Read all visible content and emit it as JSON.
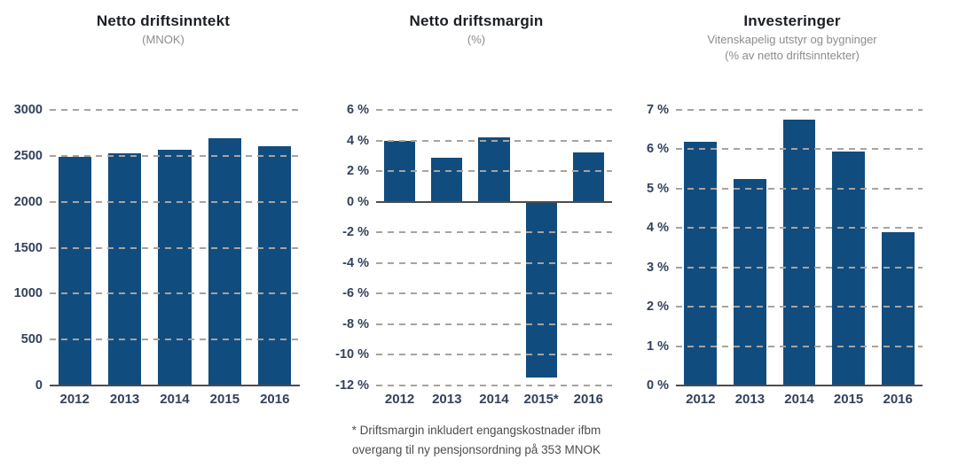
{
  "page": {
    "background": "#FFFFFF",
    "description_colors": {
      "bar": "#114C7E",
      "gridline": "#A8A39D",
      "axis_line": "#4D4D4D",
      "tick_label": "#33415C",
      "title": "#1B1E24",
      "subtitle": "#8C8C8C",
      "footnote": "#4D4D4D"
    }
  },
  "chart_data": [
    {
      "type": "bar",
      "title": "Netto driftsinntekt",
      "subtitle": "(MNOK)",
      "categories": [
        "2012",
        "2013",
        "2014",
        "2015",
        "2016"
      ],
      "values": [
        2490,
        2530,
        2565,
        2690,
        2600
      ],
      "ylim": [
        0,
        3000
      ],
      "yticks": [
        3000,
        2500,
        2000,
        1500,
        1000,
        500,
        0
      ],
      "ytick_labels": [
        "3000",
        "2500",
        "2000",
        "1500",
        "1000",
        "500",
        "0"
      ],
      "grid": "horizontal-dashed",
      "legend": "none"
    },
    {
      "type": "bar",
      "title": "Netto driftsmargin",
      "subtitle": "(%)",
      "categories": [
        "2012",
        "2013",
        "2014",
        "2015*",
        "2016"
      ],
      "values": [
        4.0,
        2.9,
        4.2,
        -11.5,
        3.2
      ],
      "ylim": [
        -12,
        6
      ],
      "yticks": [
        6,
        4,
        2,
        0,
        -2,
        -4,
        -6,
        -8,
        -10,
        -12
      ],
      "ytick_labels": [
        "6 %",
        "4 %",
        "2 %",
        "0 %",
        "-2 %",
        "-4 %",
        "-6 %",
        "-8 %",
        "-10 %",
        "-12 %"
      ],
      "grid": "horizontal-dashed",
      "legend": "none",
      "footnote_lines": [
        "* Driftsmargin inkludert engangskostnader ifbm",
        "overgang til ny pensjonsordning på 353 MNOK"
      ]
    },
    {
      "type": "bar",
      "title": "Investeringer",
      "subtitle": "Vitenskapelig utstyr og bygninger",
      "subtitle2": "(% av netto driftsinntekter)",
      "categories": [
        "2012",
        "2013",
        "2014",
        "2015",
        "2016"
      ],
      "values": [
        6.2,
        5.25,
        6.75,
        5.95,
        3.9
      ],
      "ylim": [
        0,
        7
      ],
      "yticks": [
        7,
        6,
        5,
        4,
        3,
        2,
        1,
        0
      ],
      "ytick_labels": [
        "7 %",
        "6 %",
        "5 %",
        "4 %",
        "3 %",
        "2 %",
        "1 %",
        "0 %"
      ],
      "grid": "horizontal-dashed",
      "legend": "none"
    }
  ]
}
